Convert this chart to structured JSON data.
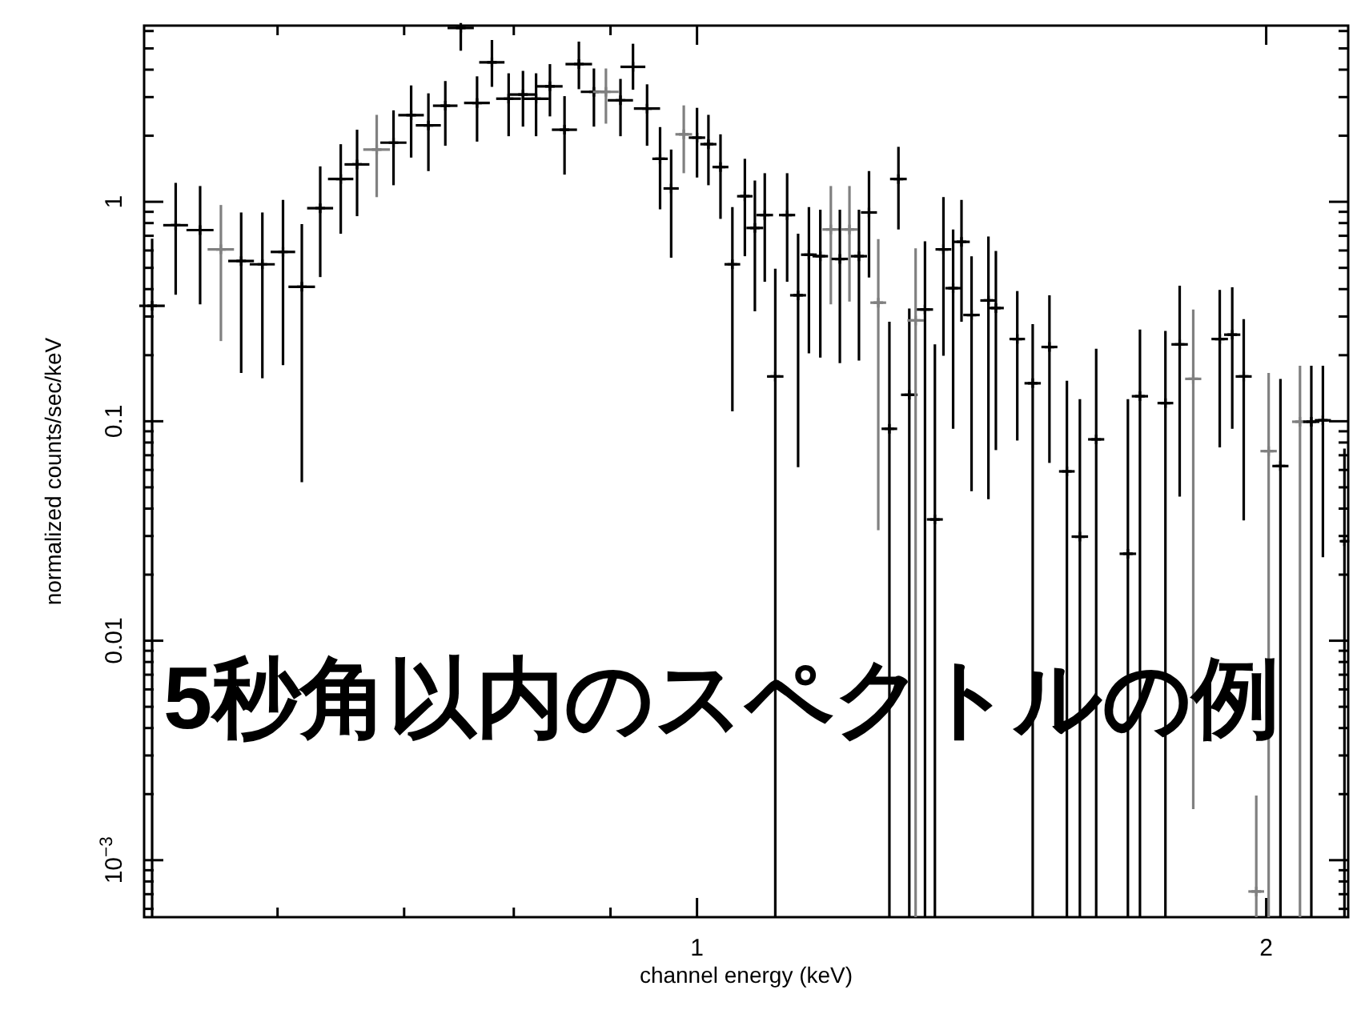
{
  "chart_data": {
    "type": "scatter",
    "xlabel": "channel energy (keV)",
    "ylabel": "normalized counts/sec/keV",
    "annotations": [
      "5秒角以内のスペクトルの例"
    ],
    "log": "xy",
    "marker": "cross",
    "xlim": [
      0.51,
      2.21
    ],
    "ylim": [
      0.00055,
      6.35
    ],
    "xticks": [
      {
        "value": 0.6,
        "label": null
      },
      {
        "value": 0.7,
        "label": null
      },
      {
        "value": 0.8,
        "label": null
      },
      {
        "value": 0.9,
        "label": null
      },
      1,
      2
    ],
    "yticks": [
      {
        "value": 0.0006,
        "label": null
      },
      {
        "value": 0.0007,
        "label": null
      },
      {
        "value": 0.0008,
        "label": null
      },
      {
        "value": 0.0009,
        "label": null
      },
      {
        "value": 0.001,
        "label": "10$^{−3}$"
      },
      {
        "value": 0.002,
        "label": null
      },
      {
        "value": 0.003,
        "label": null
      },
      {
        "value": 0.004,
        "label": null
      },
      {
        "value": 0.005,
        "label": null
      },
      {
        "value": 0.006,
        "label": null
      },
      {
        "value": 0.007,
        "label": null
      },
      {
        "value": 0.008,
        "label": null
      },
      {
        "value": 0.009,
        "label": null
      },
      0.01,
      {
        "value": 0.02,
        "label": null
      },
      {
        "value": 0.03,
        "label": null
      },
      {
        "value": 0.04,
        "label": null
      },
      {
        "value": 0.05,
        "label": null
      },
      {
        "value": 0.06,
        "label": null
      },
      {
        "value": 0.07,
        "label": null
      },
      {
        "value": 0.08,
        "label": null
      },
      {
        "value": 0.09,
        "label": null
      },
      0.1,
      {
        "value": 0.2,
        "label": null
      },
      {
        "value": 0.3,
        "label": null
      },
      {
        "value": 0.4,
        "label": null
      },
      {
        "value": 0.5,
        "label": null
      },
      {
        "value": 0.6,
        "label": null
      },
      {
        "value": 0.7,
        "label": null
      },
      {
        "value": 0.8,
        "label": null
      },
      {
        "value": 0.9,
        "label": null
      },
      1,
      {
        "value": 2,
        "label": null
      },
      {
        "value": 3,
        "label": null
      },
      {
        "value": 4,
        "label": null
      },
      {
        "value": 5,
        "label": null
      },
      {
        "value": 6,
        "label": null
      }
    ],
    "x": [
      0.515,
      0.53,
      0.546,
      0.56,
      0.574,
      0.589,
      0.604,
      0.618,
      0.632,
      0.648,
      0.661,
      0.677,
      0.691,
      0.706,
      0.721,
      0.736,
      0.75,
      0.765,
      0.779,
      0.795,
      0.809,
      0.822,
      0.836,
      0.851,
      0.866,
      0.882,
      0.895,
      0.911,
      0.925,
      0.941,
      0.956,
      0.969,
      0.984,
      1.0,
      1.014,
      1.029,
      1.044,
      1.06,
      1.073,
      1.086,
      1.1,
      1.116,
      1.131,
      1.146,
      1.162,
      1.177,
      1.19,
      1.204,
      1.218,
      1.233,
      1.247,
      1.264,
      1.278,
      1.295,
      1.305,
      1.32,
      1.336,
      1.35,
      1.366,
      1.38,
      1.397,
      1.426,
      1.439,
      1.477,
      1.505,
      1.536,
      1.569,
      1.594,
      1.626,
      1.69,
      1.715,
      1.769,
      1.8,
      1.83,
      1.89,
      1.919,
      1.946,
      1.976,
      2.006,
      2.035,
      2.084,
      2.113,
      2.143,
      2.2
    ],
    "values": [
      0.336,
      0.782,
      0.743,
      0.607,
      0.537,
      0.519,
      0.591,
      0.41,
      0.935,
      1.27,
      1.48,
      1.73,
      1.86,
      2.48,
      2.23,
      2.74,
      6.2,
      2.82,
      4.32,
      2.95,
      3.08,
      2.95,
      3.36,
      2.13,
      4.24,
      3.17,
      3.17,
      2.9,
      4.12,
      2.66,
      1.57,
      1.15,
      2.03,
      1.96,
      1.83,
      1.44,
      0.519,
      1.06,
      0.76,
      0.87,
      0.16,
      0.87,
      0.375,
      0.574,
      0.565,
      0.748,
      0.549,
      0.748,
      0.565,
      0.894,
      0.347,
      0.0924,
      1.27,
      0.132,
      0.288,
      0.323,
      0.0357,
      0.607,
      0.404,
      0.657,
      0.305,
      0.355,
      0.328,
      0.237,
      0.149,
      0.218,
      0.0591,
      0.0298,
      0.0827,
      0.0249,
      0.13,
      0.121,
      0.224,
      0.156,
      0.237,
      0.248,
      0.16,
      0.00072,
      0.0731,
      0.0625,
      0.0995,
      0.0995,
      0.101,
      0.0284
    ],
    "errors": [
      [
        0.00055,
        0.679
      ],
      [
        0.377,
        1.22
      ],
      [
        0.341,
        1.18
      ],
      [
        0.232,
        0.967
      ],
      [
        0.166,
        0.894
      ],
      [
        0.157,
        0.894
      ],
      [
        0.18,
        1.02
      ],
      [
        0.0528,
        0.791
      ],
      [
        0.454,
        1.45
      ],
      [
        0.715,
        1.83
      ],
      [
        0.86,
        2.13
      ],
      [
        1.05,
        2.49
      ],
      [
        1.19,
        2.61
      ],
      [
        1.59,
        3.39
      ],
      [
        1.38,
        3.12
      ],
      [
        1.8,
        3.55
      ],
      [
        4.88,
        6.3
      ],
      [
        1.88,
        3.73
      ],
      [
        3.34,
        5.46
      ],
      [
        1.99,
        3.85
      ],
      [
        2.2,
        3.95
      ],
      [
        1.99,
        3.85
      ],
      [
        2.45,
        4.24
      ],
      [
        1.33,
        3.03
      ],
      [
        3.26,
        5.37
      ],
      [
        2.2,
        4.05
      ],
      [
        2.27,
        4.05
      ],
      [
        1.99,
        3.63
      ],
      [
        3.24,
        5.25
      ],
      [
        1.8,
        3.43
      ],
      [
        0.924,
        2.19
      ],
      [
        0.556,
        1.73
      ],
      [
        1.35,
        2.75
      ],
      [
        1.29,
        2.68
      ],
      [
        1.19,
        2.49
      ],
      [
        0.836,
        2.03
      ],
      [
        0.111,
        0.946
      ],
      [
        0.565,
        1.57
      ],
      [
        0.317,
        1.25
      ],
      [
        0.432,
        1.35
      ],
      [
        0.00055,
        0.496
      ],
      [
        0.432,
        1.35
      ],
      [
        0.0618,
        0.715
      ],
      [
        0.204,
        0.946
      ],
      [
        0.195,
        0.92
      ],
      [
        0.341,
        1.18
      ],
      [
        0.184,
        0.92
      ],
      [
        0.351,
        1.18
      ],
      [
        0.189,
        0.92
      ],
      [
        0.452,
        1.38
      ],
      [
        0.0319,
        0.676
      ],
      [
        0.00055,
        0.284
      ],
      [
        0.748,
        1.78
      ],
      [
        0.00055,
        0.326
      ],
      [
        0.00055,
        0.614
      ],
      [
        0.00055,
        0.66
      ],
      [
        0.00055,
        0.224
      ],
      [
        0.199,
        1.05
      ],
      [
        0.0924,
        0.748
      ],
      [
        0.284,
        1.02
      ],
      [
        0.048,
        0.565
      ],
      [
        0.0441,
        0.695
      ],
      [
        0.0739,
        0.597
      ],
      [
        0.0817,
        0.392
      ],
      [
        0.00055,
        0.277
      ],
      [
        0.0646,
        0.375
      ],
      [
        0.00055,
        0.153
      ],
      [
        0.00055,
        0.126
      ],
      [
        0.00055,
        0.214
      ],
      [
        0.00055,
        0.126
      ],
      [
        0.00055,
        0.262
      ],
      [
        0.00055,
        0.258
      ],
      [
        0.0454,
        0.415
      ],
      [
        0.00171,
        0.323
      ],
      [
        0.076,
        0.397
      ],
      [
        0.0924,
        0.408
      ],
      [
        0.0353,
        0.292
      ],
      [
        0.00055,
        0.00197
      ],
      [
        0.00055,
        0.166
      ],
      [
        0.00055,
        0.156
      ],
      [
        0.00055,
        0.179
      ],
      [
        0.00055,
        0.179
      ],
      [
        0.024,
        0.179
      ],
      [
        0.00055,
        0.0751
      ]
    ],
    "xerrors": [
      0.008,
      0.008,
      0.009,
      0.009,
      0.009,
      0.009,
      0.009,
      0.01,
      0.01,
      0.01,
      0.01,
      0.011,
      0.011,
      0.011,
      0.011,
      0.011,
      0.012,
      0.012,
      0.012,
      0.012,
      0.013,
      0.013,
      0.013,
      0.013,
      0.014,
      0.014,
      0.014,
      0.014,
      0.014,
      0.015,
      0.009,
      0.009,
      0.01,
      0.01,
      0.01,
      0.01,
      0.01,
      0.01,
      0.011,
      0.011,
      0.011,
      0.011,
      0.011,
      0.011,
      0.011,
      0.012,
      0.012,
      0.012,
      0.012,
      0.012,
      0.012,
      0.012,
      0.013,
      0.013,
      0.013,
      0.013,
      0.013,
      0.013,
      0.013,
      0.014,
      0.014,
      0.014,
      0.014,
      0.014,
      0.015,
      0.015,
      0.015,
      0.016,
      0.016,
      0.017,
      0.017,
      0.017,
      0.018,
      0.018,
      0.019,
      0.019,
      0.019,
      0.019,
      0.02,
      0.02,
      0.02,
      0.021,
      0.021,
      0.01
    ],
    "colors": [
      "#000000",
      "#000000",
      "#000000",
      "#808080",
      "#000000",
      "#000000",
      "#000000",
      "#000000",
      "#000000",
      "#000000",
      "#000000",
      "#808080",
      "#000000",
      "#000000",
      "#000000",
      "#000000",
      "#000000",
      "#000000",
      "#000000",
      "#000000",
      "#000000",
      "#000000",
      "#000000",
      "#000000",
      "#000000",
      "#000000",
      "#808080",
      "#000000",
      "#000000",
      "#000000",
      "#000000",
      "#000000",
      "#808080",
      "#000000",
      "#000000",
      "#000000",
      "#000000",
      "#000000",
      "#000000",
      "#000000",
      "#000000",
      "#000000",
      "#000000",
      "#000000",
      "#000000",
      "#808080",
      "#000000",
      "#808080",
      "#000000",
      "#000000",
      "#808080",
      "#000000",
      "#000000",
      "#000000",
      "#808080",
      "#000000",
      "#000000",
      "#000000",
      "#000000",
      "#000000",
      "#000000",
      "#000000",
      "#000000",
      "#000000",
      "#000000",
      "#000000",
      "#000000",
      "#000000",
      "#000000",
      "#000000",
      "#000000",
      "#000000",
      "#000000",
      "#808080",
      "#000000",
      "#000000",
      "#000000",
      "#808080",
      "#808080",
      "#000000",
      "#808080",
      "#000000",
      "#000000",
      "#000000"
    ]
  }
}
